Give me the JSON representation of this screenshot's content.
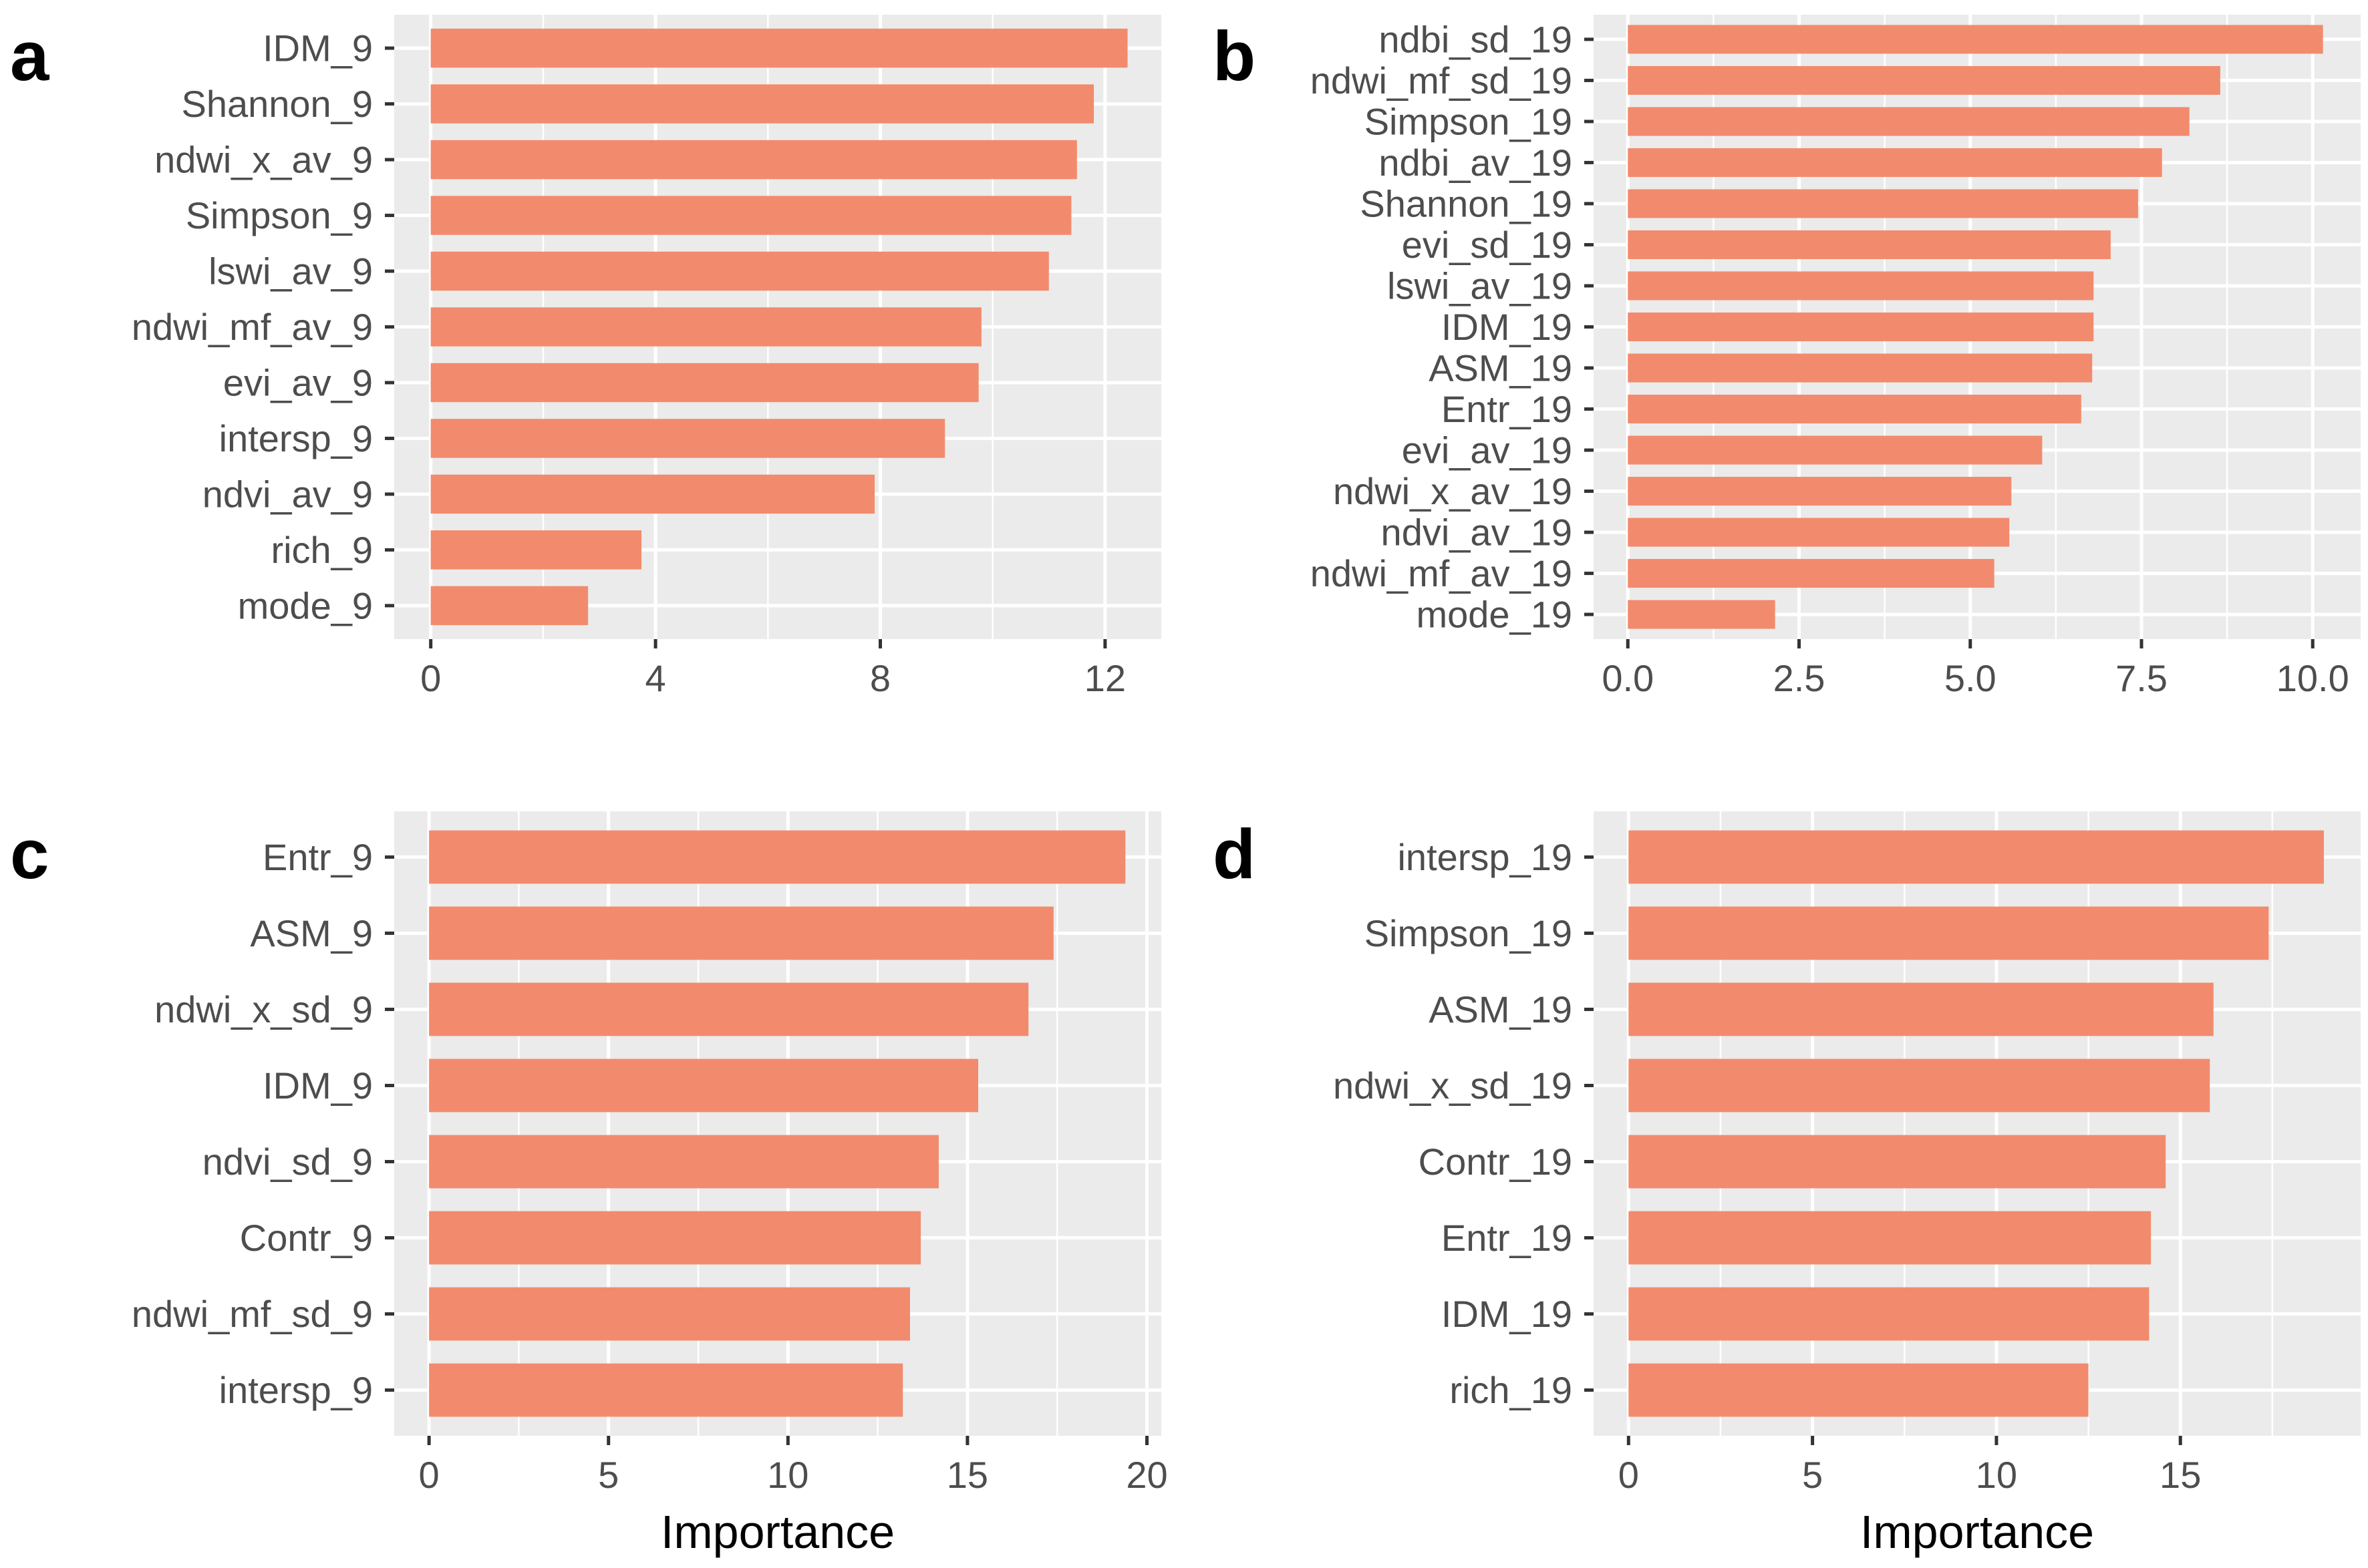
{
  "colors": {
    "bar": "#F28B6D",
    "panel": "#EBEBEB",
    "grid": "#FFFFFF",
    "tick_text": "#4D4D4D",
    "tick_line": "#333333"
  },
  "chart_data": [
    {
      "type": "bar",
      "orientation": "horizontal",
      "panel_label": "a",
      "xlabel": "",
      "xlim": [
        -0.65,
        13.0
      ],
      "xticks": [
        0,
        4,
        8,
        12
      ],
      "xtick_labels": [
        "0",
        "4",
        "8",
        "12"
      ],
      "categories": [
        "IDM_9",
        "Shannon_9",
        "ndwi_x_av_9",
        "Simpson_9",
        "lswi_av_9",
        "ndwi_mf_av_9",
        "evi_av_9",
        "intersp_9",
        "ndvi_av_9",
        "rich_9",
        "mode_9"
      ],
      "values": [
        12.4,
        11.8,
        11.5,
        11.4,
        11.0,
        9.8,
        9.75,
        9.15,
        7.9,
        3.75,
        2.8
      ]
    },
    {
      "type": "bar",
      "orientation": "horizontal",
      "panel_label": "b",
      "xlabel": "",
      "xlim": [
        -0.5,
        10.7
      ],
      "xticks": [
        0,
        2.5,
        5.0,
        7.5,
        10.0
      ],
      "xtick_labels": [
        "0.0",
        "2.5",
        "5.0",
        "7.5",
        "10.0"
      ],
      "categories": [
        "ndbi_sd_19",
        "ndwi_mf_sd_19",
        "Simpson_19",
        "ndbi_av_19",
        "Shannon_19",
        "evi_sd_19",
        "lswi_av_19",
        "IDM_19",
        "ASM_19",
        "Entr_19",
        "evi_av_19",
        "ndwi_x_av_19",
        "ndvi_av_19",
        "ndwi_mf_av_19",
        "mode_19"
      ],
      "values": [
        10.15,
        8.65,
        8.2,
        7.8,
        7.45,
        7.05,
        6.8,
        6.8,
        6.78,
        6.62,
        6.05,
        5.6,
        5.57,
        5.35,
        2.15
      ]
    },
    {
      "type": "bar",
      "orientation": "horizontal",
      "panel_label": "c",
      "xlabel": "Importance",
      "xlim": [
        -0.97,
        20.4
      ],
      "xticks": [
        0,
        5,
        10,
        15,
        20
      ],
      "xtick_labels": [
        "0",
        "5",
        "10",
        "15",
        "20"
      ],
      "categories": [
        "Entr_9",
        "ASM_9",
        "ndwi_x_sd_9",
        "IDM_9",
        "ndvi_sd_9",
        "Contr_9",
        "ndwi_mf_sd_9",
        "intersp_9"
      ],
      "values": [
        19.4,
        17.4,
        16.7,
        15.3,
        14.2,
        13.7,
        13.4,
        13.2
      ]
    },
    {
      "type": "bar",
      "orientation": "horizontal",
      "panel_label": "d",
      "xlabel": "Importance",
      "xlim": [
        -0.95,
        19.9
      ],
      "xticks": [
        0,
        5,
        10,
        15
      ],
      "xtick_labels": [
        "0",
        "5",
        "10",
        "15"
      ],
      "categories": [
        "intersp_19",
        "Simpson_19",
        "ASM_19",
        "ndwi_x_sd_19",
        "Contr_19",
        "Entr_19",
        "IDM_19",
        "rich_19"
      ],
      "values": [
        18.9,
        17.4,
        15.9,
        15.8,
        14.6,
        14.2,
        14.15,
        12.5
      ]
    }
  ]
}
